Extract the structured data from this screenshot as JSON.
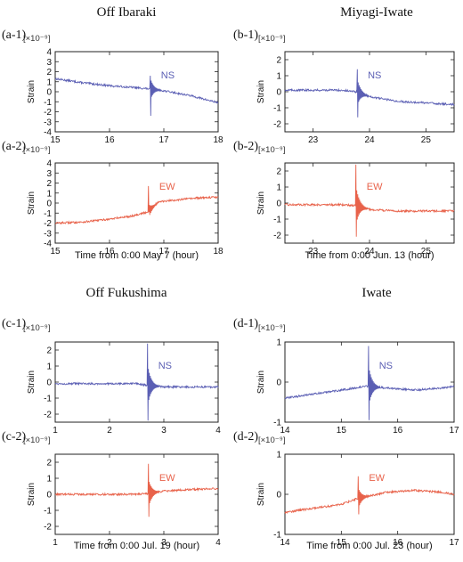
{
  "colors": {
    "ns": "#5b5fb4",
    "ew": "#e8624a",
    "frame": "#222222",
    "grid": "#c8c8c8"
  },
  "panels": [
    {
      "title": "Off Ibaraki",
      "xlabel": "Time from 0:00 May 7 (hour)"
    },
    {
      "title": "Miyagi-Iwate",
      "xlabel": "Time from 0:00 Jun. 13 (hour)"
    },
    {
      "title": "Off Fukushima",
      "xlabel": "Time from 0:00 Jul. 19 (hour)"
    },
    {
      "title": "Iwate",
      "xlabel": "Time from 0:00 Jul. 23 (hour)"
    }
  ],
  "chart_data": [
    {
      "type": "line",
      "label": "(a-1)",
      "component": "NS",
      "unit": "[×10⁻⁹]",
      "ylabel": "Strain",
      "xlim": [
        15,
        18
      ],
      "ylim": [
        -4,
        4
      ],
      "xticks": [
        "15",
        "16",
        "17",
        "18"
      ],
      "yticks": [
        "4",
        "3",
        "2",
        "1",
        "0",
        "-1",
        "-2",
        "-3",
        "-4"
      ],
      "event_time": 16.75,
      "peak": [
        1.6,
        -2.4
      ],
      "series": [
        {
          "x": [
            15,
            15.5,
            16,
            16.5,
            16.7,
            17,
            17.5,
            18
          ],
          "y": [
            1.3,
            0.9,
            0.6,
            0.4,
            0.3,
            0.1,
            -0.4,
            -1.1
          ]
        }
      ]
    },
    {
      "type": "line",
      "label": "(a-2)",
      "component": "EW",
      "unit": "[×10⁻⁹]",
      "ylabel": "Strain",
      "xlim": [
        15,
        18
      ],
      "ylim": [
        -4,
        4
      ],
      "xticks": [
        "15",
        "16",
        "17",
        "18"
      ],
      "yticks": [
        "4",
        "3",
        "2",
        "1",
        "0",
        "-1",
        "-2",
        "-3",
        "-4"
      ],
      "event_time": 16.72,
      "peak": [
        1.7,
        -0.9
      ],
      "series": [
        {
          "x": [
            15,
            15.5,
            16,
            16.4,
            16.7,
            16.9,
            17.2,
            17.6,
            18
          ],
          "y": [
            -2.0,
            -1.9,
            -1.6,
            -1.3,
            -0.9,
            0.1,
            0.3,
            0.5,
            0.6
          ]
        }
      ]
    },
    {
      "type": "line",
      "label": "(b-1)",
      "component": "NS",
      "unit": "[×10⁻⁹]",
      "ylabel": "Strain",
      "xlim": [
        22.5,
        25.5
      ],
      "ylim": [
        -2.5,
        2.5
      ],
      "xticks": [
        "23",
        "24",
        "25"
      ],
      "yticks": [
        "2",
        "1",
        "0",
        "-1",
        "-2"
      ],
      "event_time": 23.78,
      "peak": [
        1.4,
        -1.6
      ],
      "series": [
        {
          "x": [
            22.5,
            23,
            23.5,
            23.75,
            24,
            24.5,
            25,
            25.5
          ],
          "y": [
            0.1,
            0.1,
            0.1,
            0.0,
            -0.3,
            -0.6,
            -0.7,
            -0.8
          ]
        }
      ]
    },
    {
      "type": "line",
      "label": "(b-2)",
      "component": "EW",
      "unit": "[×10⁻⁹]",
      "ylabel": "Strain",
      "xlim": [
        22.5,
        25.5
      ],
      "ylim": [
        -2.5,
        2.5
      ],
      "xticks": [
        "23",
        "24",
        "25"
      ],
      "yticks": [
        "2",
        "1",
        "0",
        "-1",
        "-2"
      ],
      "event_time": 23.76,
      "peak": [
        2.4,
        -2.1
      ],
      "series": [
        {
          "x": [
            22.5,
            23,
            23.5,
            23.75,
            24,
            24.5,
            25,
            25.5
          ],
          "y": [
            -0.1,
            -0.1,
            -0.1,
            -0.15,
            -0.4,
            -0.5,
            -0.5,
            -0.5
          ]
        }
      ]
    },
    {
      "type": "line",
      "label": "(c-1)",
      "component": "NS",
      "unit": "[×10⁻⁹]",
      "ylabel": "Strain",
      "xlim": [
        1,
        4
      ],
      "ylim": [
        -2.5,
        2.5
      ],
      "xticks": [
        "1",
        "2",
        "3",
        "4"
      ],
      "yticks": [
        "2",
        "1",
        "0",
        "-1",
        "-2"
      ],
      "event_time": 2.7,
      "peak": [
        2.4,
        -2.4
      ],
      "series": [
        {
          "x": [
            1,
            1.5,
            2,
            2.5,
            2.7,
            3,
            3.5,
            4
          ],
          "y": [
            -0.1,
            -0.1,
            -0.1,
            -0.1,
            -0.2,
            -0.3,
            -0.3,
            -0.3
          ]
        }
      ]
    },
    {
      "type": "line",
      "label": "(c-2)",
      "component": "EW",
      "unit": "[×10⁻⁹]",
      "ylabel": "Strain",
      "xlim": [
        1,
        4
      ],
      "ylim": [
        -2.5,
        2.5
      ],
      "xticks": [
        "1",
        "2",
        "3",
        "4"
      ],
      "yticks": [
        "2",
        "1",
        "0",
        "-1",
        "-2"
      ],
      "event_time": 2.72,
      "peak": [
        1.9,
        -1.4
      ],
      "series": [
        {
          "x": [
            1,
            1.5,
            2,
            2.5,
            2.7,
            3,
            3.5,
            4
          ],
          "y": [
            0.0,
            0.0,
            0.0,
            0.0,
            0.05,
            0.2,
            0.3,
            0.35
          ]
        }
      ]
    },
    {
      "type": "line",
      "label": "(d-1)",
      "component": "NS",
      "unit": "[×10⁻⁹]",
      "ylabel": "Strain",
      "xlim": [
        14,
        17
      ],
      "ylim": [
        -1,
        1
      ],
      "xticks": [
        "14",
        "15",
        "16",
        "17"
      ],
      "yticks": [
        "1",
        "0",
        "-1"
      ],
      "event_time": 15.48,
      "peak": [
        0.9,
        -0.95
      ],
      "series": [
        {
          "x": [
            14,
            14.5,
            15,
            15.45,
            15.8,
            16.3,
            16.8,
            17
          ],
          "y": [
            -0.4,
            -0.3,
            -0.2,
            -0.1,
            -0.15,
            -0.2,
            -0.15,
            -0.1
          ]
        }
      ]
    },
    {
      "type": "line",
      "label": "(d-2)",
      "component": "EW",
      "unit": "[×10⁻⁹]",
      "ylabel": "Strain",
      "xlim": [
        14,
        17
      ],
      "ylim": [
        -1,
        1
      ],
      "xticks": [
        "14",
        "15",
        "16",
        "17"
      ],
      "yticks": [
        "1",
        "0",
        "-1"
      ],
      "event_time": 15.3,
      "peak": [
        0.45,
        -0.5
      ],
      "series": [
        {
          "x": [
            14,
            14.5,
            15,
            15.3,
            15.8,
            16.3,
            16.8,
            17
          ],
          "y": [
            -0.45,
            -0.35,
            -0.25,
            -0.1,
            0.05,
            0.1,
            0.05,
            0.0
          ]
        }
      ]
    }
  ]
}
